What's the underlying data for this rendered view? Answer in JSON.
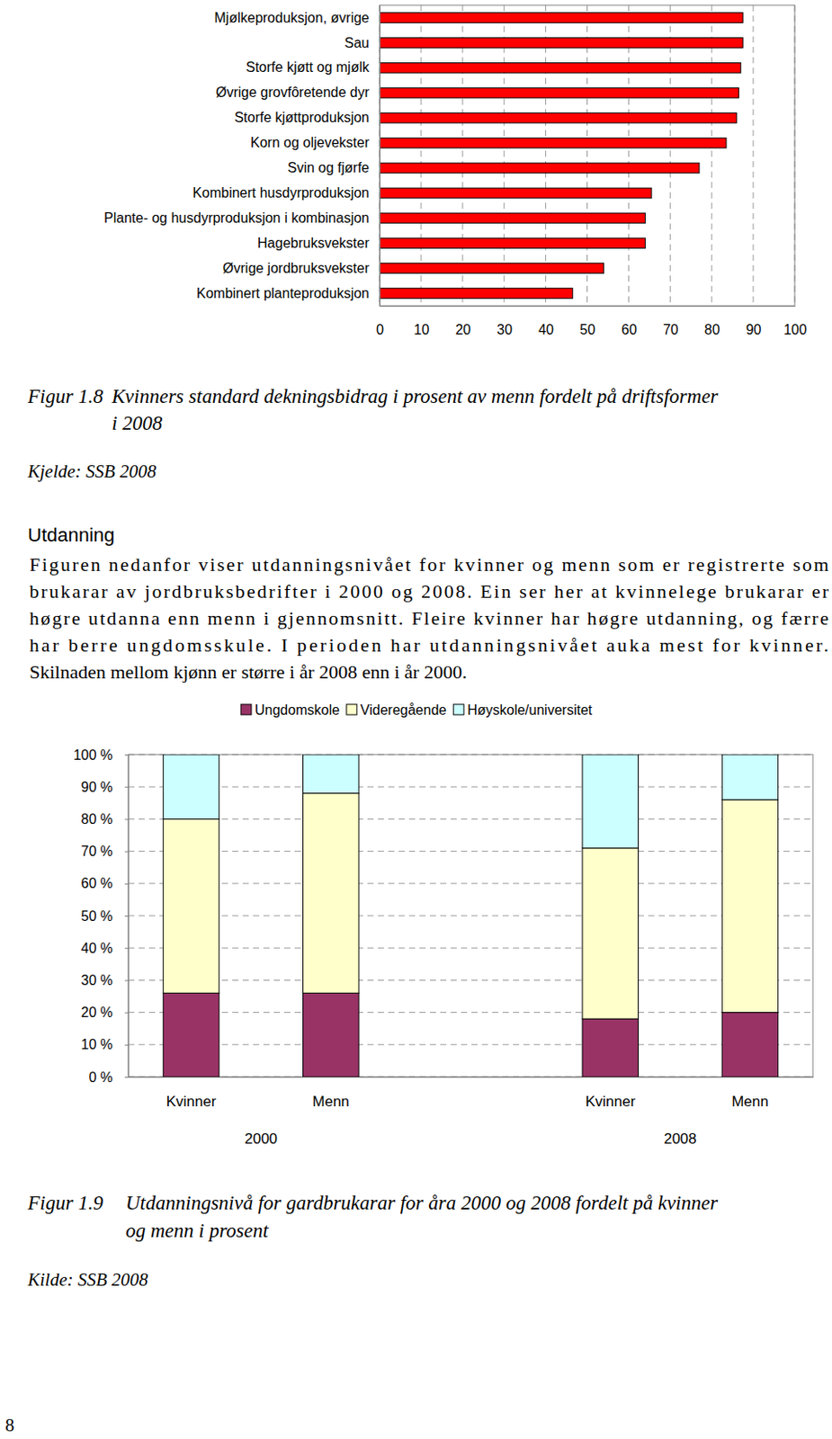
{
  "chart_data": [
    {
      "type": "bar",
      "orientation": "horizontal",
      "categories": [
        "Mjølkeproduksjon, øvrige",
        "Sau",
        "Storfe kjøtt og mjølk",
        "Øvrige grovfôretende dyr",
        "Storfe kjøttproduksjon",
        "Korn og oljevekster",
        "Svin og fjørfe",
        "Kombinert husdyrproduksjon",
        "Plante- og husdyrproduksjon i kombinasjon",
        "Hagebruksvekster",
        "Øvrige jordbruksvekster",
        "Kombinert planteproduksjon"
      ],
      "values": [
        87.5,
        87.5,
        87,
        86.5,
        86,
        83.5,
        77,
        65.5,
        64,
        64,
        54,
        46.5
      ],
      "color": "#ff0000",
      "xlim": [
        0,
        100
      ],
      "xticks": [
        0,
        10,
        20,
        30,
        40,
        50,
        60,
        70,
        80,
        90,
        100
      ],
      "grid": true
    },
    {
      "type": "bar",
      "stacked": true,
      "categories": [
        "Kvinner",
        "Menn",
        null,
        "Kvinner",
        "Menn"
      ],
      "groups": [
        "2000",
        "2008"
      ],
      "series": [
        {
          "name": "Ungdomskole",
          "color": "#993366",
          "values": [
            26,
            26,
            null,
            18,
            20
          ]
        },
        {
          "name": "Videregående",
          "color": "#ffffcc",
          "values": [
            54,
            62,
            null,
            53,
            66
          ]
        },
        {
          "name": "Høyskole/universitet",
          "color": "#ccffff",
          "values": [
            20,
            12,
            null,
            29,
            14
          ]
        }
      ],
      "ylim": [
        0,
        100
      ],
      "yticks": [
        {
          "value": 0,
          "label": "0 %"
        },
        {
          "value": 10,
          "label": "10 %"
        },
        {
          "value": 20,
          "label": "20 %"
        },
        {
          "value": 30,
          "label": "30 %"
        },
        {
          "value": 40,
          "label": "40 %"
        },
        {
          "value": 50,
          "label": "50 %"
        },
        {
          "value": 60,
          "label": "60 %"
        },
        {
          "value": 70,
          "label": "70 %"
        },
        {
          "value": 80,
          "label": "80 %"
        },
        {
          "value": 90,
          "label": "90 %"
        },
        {
          "value": 100,
          "label": "100 %"
        }
      ],
      "grid": true,
      "legend": "top"
    }
  ],
  "document": {
    "figures": [
      {
        "number": "Figur 1.8",
        "caption_lines": [
          "Kvinners standard dekningsbidrag i prosent av menn fordelt på driftsformer",
          "i 2008"
        ],
        "source": "Kjelde: SSB 2008"
      },
      {
        "number": "Figur 1.9",
        "caption_lines": [
          "Utdanningsnivå for gardbrukarar for åra 2000 og 2008 fordelt på kvinner",
          "og menn i prosent"
        ],
        "source": "Kilde: SSB 2008"
      }
    ],
    "heading": "Utdanning",
    "paragraph": [
      "Figuren nedanfor viser utdanningsnivået for kvinner og menn som er registrerte som",
      "brukarar av jordbruksbedrifter i 2000 og 2008. Ein ser her at kvinnelege brukarar er",
      "høgre utdanna enn menn i gjennomsnitt. Fleire kvinner har høgre utdanning, og færre",
      "har berre ungdomsskule. I perioden har utdanningsnivået auka mest for kvinner.",
      "Skilnaden mellom kjønn er større i år 2008 enn i år 2000."
    ],
    "page_number": "8"
  }
}
